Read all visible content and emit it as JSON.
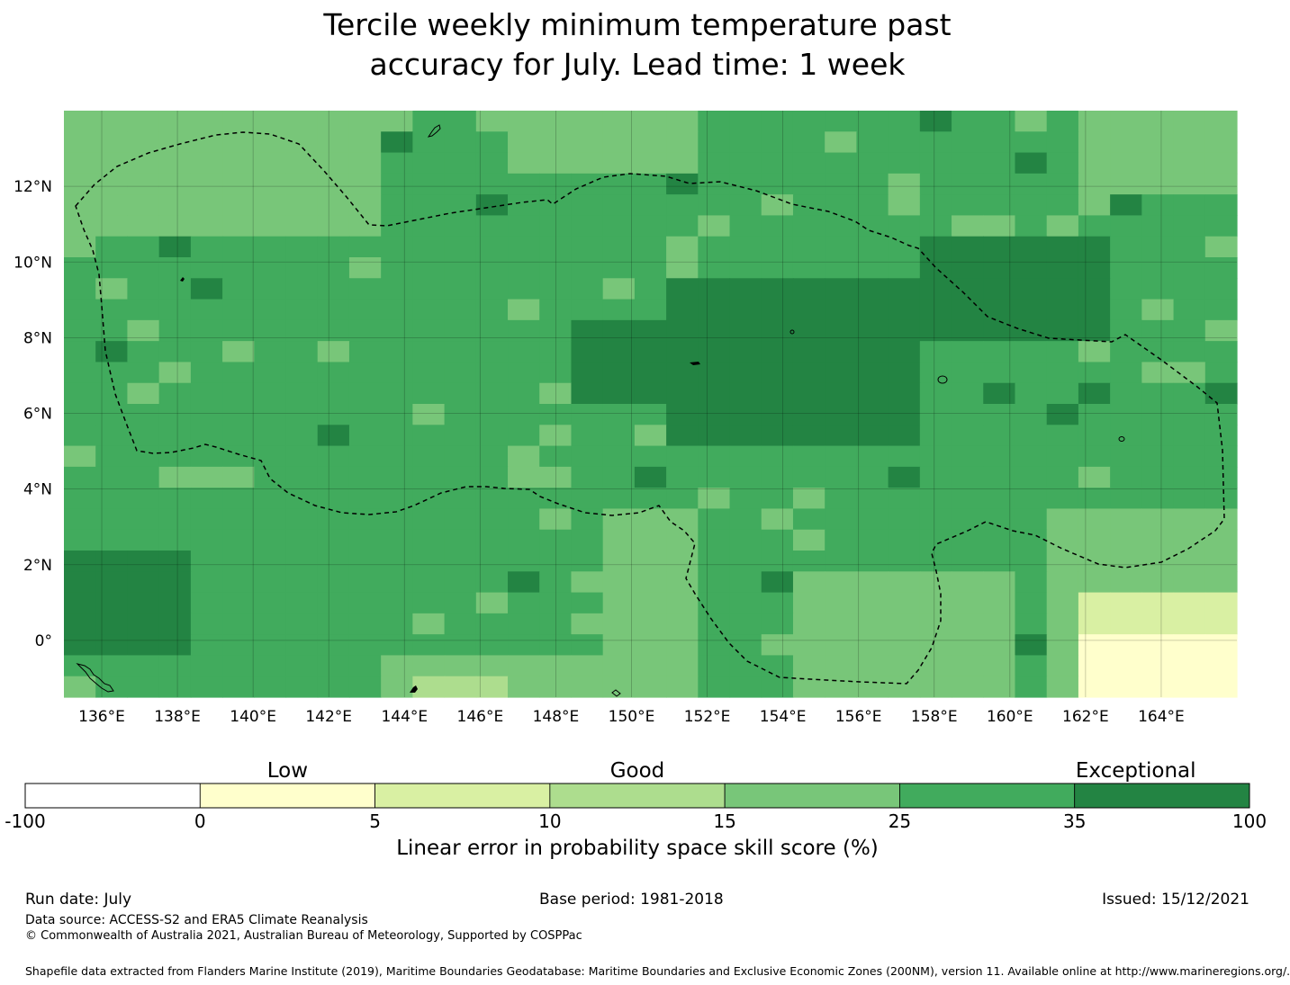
{
  "title": {
    "line1": "Tercile weekly minimum temperature past",
    "line2": "accuracy for July. Lead time: 1 week"
  },
  "map": {
    "lon_range": [
      135,
      166
    ],
    "lat_range": [
      -1.5,
      14
    ],
    "lat_labels": [
      "12°N",
      "10°N",
      "8°N",
      "6°N",
      "4°N",
      "2°N",
      "0°"
    ],
    "lat_values": [
      12,
      10,
      8,
      6,
      4,
      2,
      0
    ],
    "lon_labels": [
      "136°E",
      "138°E",
      "140°E",
      "142°E",
      "144°E",
      "146°E",
      "148°E",
      "150°E",
      "152°E",
      "154°E",
      "156°E",
      "158°E",
      "160°E",
      "162°E",
      "164°E"
    ],
    "lon_values": [
      136,
      138,
      140,
      142,
      144,
      146,
      148,
      150,
      152,
      154,
      156,
      158,
      160,
      162,
      164
    ],
    "boundary": "EEZ dashed boundary"
  },
  "colorbar": {
    "categories": [
      "Low",
      "Good",
      "Exceptional"
    ],
    "ticks": [
      "-100",
      "0",
      "5",
      "10",
      "15",
      "25",
      "35",
      "100"
    ],
    "colors": [
      "#ffffff",
      "#ffffcc",
      "#d9f0a3",
      "#addd8e",
      "#78c679",
      "#41ab5d",
      "#238443"
    ],
    "label": "Linear error in probability space skill score (%)"
  },
  "footer": {
    "run_date": "Run date: July",
    "base_period": "Base period: 1981-2018",
    "issued": "Issued: 15/12/2021",
    "data_source": "Data source: ACCESS-S2 and ERA5 Climate Reanalysis",
    "copyright": "© Commonwealth of Australia 2021, Australian Bureau of Meteorology, Supported by COSPPac",
    "shapefile": "Shapefile data extracted from Flanders Marine Institute (2019), Maritime Boundaries Geodatabase: Maritime Boundaries and Exclusive Economic Zones (200NM), version 11. Available online at http://www.marineregions.org/."
  }
}
